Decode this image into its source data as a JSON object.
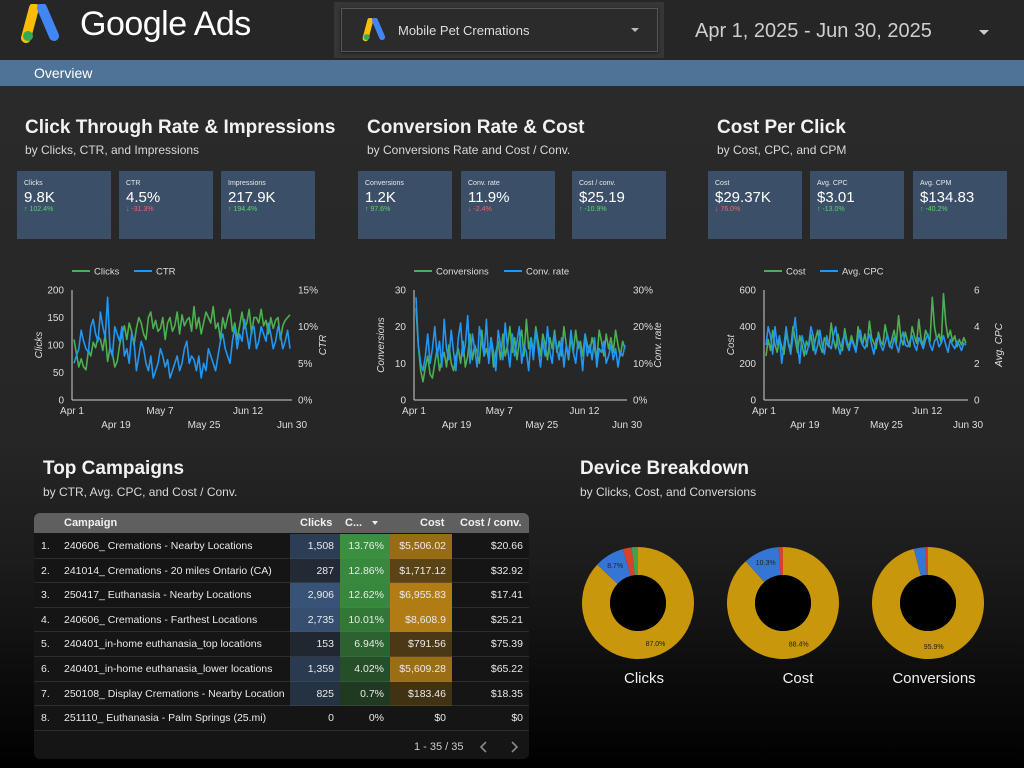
{
  "brand": {
    "name": "Google Ads"
  },
  "account": {
    "name": "Mobile Pet Cremations"
  },
  "date_range": "Apr 1, 2025 - Jun 30, 2025",
  "tabs": [
    {
      "label": "Overview"
    }
  ],
  "colors": {
    "clicks": "#4caf50",
    "rate": "#2196f3",
    "cost": "#c8970c",
    "accent": "#4e7397"
  },
  "sections": {
    "ctr": {
      "title": "Click Through Rate & Impressions",
      "subtitle": "by Clicks, CTR, and Impressions",
      "cards": [
        {
          "label": "Clicks",
          "value": "9.8K",
          "change": "102.4%",
          "dir": "up"
        },
        {
          "label": "CTR",
          "value": "4.5%",
          "change": "-31.3%",
          "dir": "down"
        },
        {
          "label": "Impressions",
          "value": "217.9K",
          "change": "194.4%",
          "dir": "up"
        }
      ]
    },
    "conv": {
      "title": "Conversion Rate & Cost",
      "subtitle": "by Conversions Rate and Cost / Conv.",
      "cards": [
        {
          "label": "Conversions",
          "value": "1.2K",
          "change": "97.6%",
          "dir": "up"
        },
        {
          "label": "Conv. rate",
          "value": "11.9%",
          "change": "-2.4%",
          "dir": "down"
        },
        {
          "label": "Cost / conv.",
          "value": "$25.19",
          "change": "-10.9%",
          "dir": "up"
        }
      ]
    },
    "cpc": {
      "title": "Cost Per Click",
      "subtitle": "by Cost, CPC, and CPM",
      "cards": [
        {
          "label": "Cost",
          "value": "$29.37K",
          "change": "76.0%",
          "dir": "down"
        },
        {
          "label": "Avg. CPC",
          "value": "$3.01",
          "change": "-13.0%",
          "dir": "up"
        },
        {
          "label": "Avg. CPM",
          "value": "$134.83",
          "change": "-40.2%",
          "dir": "up"
        }
      ]
    },
    "campaigns": {
      "title": "Top Campaigns",
      "subtitle": "by CTR, Avg. CPC, and Cost / Conv."
    },
    "devices": {
      "title": "Device Breakdown",
      "subtitle": "by Clicks, Cost, and Conversions"
    }
  },
  "chart_data": [
    {
      "type": "line",
      "legend": [
        "Clicks",
        "CTR"
      ],
      "x_ticks_top": [
        "Apr 1",
        "May 7",
        "Jun 12"
      ],
      "x_ticks_bottom": [
        "Apr 19",
        "May 25",
        "Jun 30"
      ],
      "y_left": {
        "label": "Clicks",
        "ticks": [
          "200",
          "150",
          "100",
          "50",
          "0"
        ],
        "range": [
          0,
          200
        ]
      },
      "y_right": {
        "label": "CTR",
        "ticks": [
          "15%",
          "10%",
          "5%",
          "0%"
        ],
        "range": [
          0,
          15
        ]
      },
      "series": [
        {
          "name": "Clicks",
          "axis": "left",
          "values": [
            110,
            85,
            60,
            75,
            60,
            55,
            90,
            80,
            105,
            95,
            115,
            110,
            90,
            120,
            70,
            95,
            85,
            60,
            70,
            100,
            120,
            135,
            110,
            140,
            125,
            100,
            130,
            150,
            140,
            120,
            110,
            150,
            160,
            130,
            145,
            125,
            130,
            150,
            110,
            140,
            150,
            125,
            135,
            160,
            120,
            155,
            135,
            145,
            150,
            125,
            170,
            130,
            150,
            120,
            140,
            160,
            150,
            140,
            170,
            130,
            140,
            110,
            150,
            130,
            150,
            165,
            125,
            140,
            110,
            135,
            160,
            130,
            140,
            165,
            120,
            150,
            150,
            140,
            165,
            135,
            145,
            120,
            150,
            130,
            145,
            150,
            110,
            135,
            145,
            150,
            155
          ]
        },
        {
          "name": "CTR",
          "axis": "right",
          "values": [
            5,
            6,
            7,
            9.5,
            8,
            7,
            6.5,
            10,
            11,
            9,
            8,
            12,
            10,
            8.5,
            14,
            7,
            6,
            10,
            9,
            8,
            10,
            6,
            7,
            5,
            9,
            8,
            4,
            6,
            8,
            7,
            5,
            4,
            6,
            3,
            4,
            5,
            7,
            6,
            4.5,
            5.5,
            3,
            4,
            5,
            6,
            4,
            5,
            7,
            8,
            5,
            6,
            5.5,
            4,
            6,
            3,
            5,
            4,
            7,
            6,
            5,
            4,
            6,
            8,
            9,
            7,
            6,
            5,
            8,
            10,
            7,
            9,
            8,
            11,
            9,
            7,
            9.5,
            10,
            7,
            8,
            10,
            9,
            8,
            10.5,
            9,
            7,
            8,
            10,
            9,
            7,
            8,
            9.5,
            7
          ]
        }
      ]
    },
    {
      "type": "line",
      "legend": [
        "Conversions",
        "Conv. rate"
      ],
      "x_ticks_top": [
        "Apr 1",
        "May 7",
        "Jun 12"
      ],
      "x_ticks_bottom": [
        "Apr 19",
        "May 25",
        "Jun 30"
      ],
      "y_left": {
        "label": "Conversions",
        "ticks": [
          "30",
          "20",
          "10",
          "0"
        ],
        "range": [
          0,
          30
        ]
      },
      "y_right": {
        "label": "Conv. rate",
        "ticks": [
          "30%",
          "20%",
          "10%",
          "0%"
        ],
        "range": [
          0,
          30
        ]
      },
      "series": [
        {
          "name": "Conversions",
          "axis": "left",
          "values": [
            25,
            15,
            8,
            5,
            9,
            12,
            7,
            6,
            10,
            14,
            8,
            11,
            13,
            9,
            15,
            10,
            8,
            12,
            14,
            10,
            16,
            9,
            12,
            18,
            11,
            15,
            13,
            10,
            19,
            12,
            14,
            11,
            17,
            9,
            13,
            16,
            11,
            18,
            12,
            15,
            20,
            13,
            17,
            11,
            16,
            19,
            12,
            22,
            14,
            17,
            13,
            20,
            16,
            12,
            18,
            15,
            11,
            17,
            14,
            19,
            13,
            16,
            12,
            20,
            15,
            11,
            17,
            13,
            19,
            14,
            16,
            12,
            18,
            15,
            13,
            17,
            14,
            11,
            19,
            16,
            12,
            18,
            14,
            17,
            13,
            19,
            15,
            12,
            16,
            14
          ]
        },
        {
          "name": "Conv. rate",
          "axis": "right",
          "values": [
            28,
            15,
            10,
            8,
            12,
            18,
            10,
            14,
            20,
            12,
            16,
            9,
            22,
            14,
            11,
            19,
            13,
            8,
            17,
            21,
            12,
            15,
            23,
            10,
            18,
            14,
            9,
            20,
            16,
            12,
            22,
            10,
            17,
            13,
            8,
            19,
            15,
            11,
            21,
            14,
            9,
            18,
            12,
            16,
            20,
            10,
            15,
            13,
            8,
            17,
            11,
            19,
            14,
            9,
            16,
            12,
            20,
            13,
            10,
            18,
            14,
            11,
            17,
            9,
            15,
            12,
            19,
            13,
            10,
            16,
            14,
            8,
            18,
            12,
            15,
            11,
            17,
            9,
            14,
            13,
            16,
            10,
            12,
            15,
            11,
            14,
            9,
            13,
            12,
            15
          ]
        }
      ]
    },
    {
      "type": "line",
      "legend": [
        "Cost",
        "Avg. CPC"
      ],
      "x_ticks_top": [
        "Apr 1",
        "May 7",
        "Jun 12"
      ],
      "x_ticks_bottom": [
        "Apr 19",
        "May 25",
        "Jun 30"
      ],
      "y_left": {
        "label": "Cost",
        "ticks": [
          "600",
          "400",
          "200",
          "0"
        ],
        "range": [
          0,
          600
        ]
      },
      "y_right": {
        "label": "Avg. CPC",
        "ticks": [
          "6",
          "4",
          "2",
          "0"
        ],
        "range": [
          0,
          6
        ]
      },
      "series": [
        {
          "name": "Cost",
          "axis": "left",
          "values": [
            240,
            330,
            270,
            380,
            300,
            260,
            340,
            290,
            250,
            360,
            310,
            280,
            400,
            330,
            260,
            350,
            300,
            240,
            320,
            290,
            360,
            270,
            330,
            380,
            300,
            260,
            340,
            310,
            290,
            420,
            330,
            280,
            360,
            300,
            270,
            390,
            320,
            290,
            350,
            310,
            270,
            400,
            330,
            300,
            360,
            290,
            430,
            340,
            310,
            280,
            370,
            320,
            300,
            410,
            350,
            290,
            330,
            380,
            310,
            460,
            340,
            300,
            370,
            320,
            290,
            400,
            350,
            310,
            440,
            330,
            300,
            380,
            350,
            320,
            560,
            400,
            330,
            360,
            310,
            580,
            420,
            340,
            380,
            320,
            350,
            290,
            330,
            300,
            340,
            310
          ]
        },
        {
          "name": "Avg. CPC",
          "axis": "right",
          "values": [
            3,
            4,
            3.5,
            2.5,
            4,
            3,
            3.5,
            2,
            3,
            4,
            3,
            2.5,
            3.5,
            4.5,
            3,
            2,
            3.5,
            3,
            2.5,
            3,
            4,
            3.5,
            2.5,
            3,
            3.8,
            3,
            2.5,
            3.5,
            3,
            2.8,
            3.5,
            4,
            3,
            2.5,
            3.2,
            3.6,
            3,
            2.7,
            3.3,
            3,
            2.6,
            3.4,
            3.8,
            3,
            2.8,
            3.2,
            3.6,
            3,
            2.5,
            3.3,
            3.5,
            3,
            2.7,
            3.1,
            3.6,
            3,
            2.8,
            3.4,
            3,
            2.6,
            3.3,
            3.7,
            3,
            2.9,
            3.2,
            3.5,
            3,
            2.7,
            3.4,
            3.1,
            2.8,
            3.3,
            3.6,
            3,
            2.7,
            3.2,
            3.4,
            2.9,
            3.1,
            3.5,
            3,
            2.6,
            3.3,
            3,
            2.8,
            3.2,
            3,
            2.7,
            3.1,
            3
          ]
        }
      ]
    },
    {
      "type": "pie",
      "title": "Clicks",
      "slices": [
        {
          "value": 87.0,
          "color": "#c8970c",
          "label": "87.0%"
        },
        {
          "value": 8.7,
          "color": "#3575d3",
          "label": "8.7%"
        },
        {
          "value": 2.5,
          "color": "#d84030"
        },
        {
          "value": 1.8,
          "color": "#3fa34d"
        }
      ]
    },
    {
      "type": "pie",
      "title": "Cost",
      "slices": [
        {
          "value": 88.4,
          "color": "#c8970c",
          "label": "88.4%"
        },
        {
          "value": 10.3,
          "color": "#3575d3",
          "label": "10.3%"
        },
        {
          "value": 1.3,
          "color": "#d84030"
        }
      ]
    },
    {
      "type": "pie",
      "title": "Conversions",
      "slices": [
        {
          "value": 95.9,
          "color": "#c8970c",
          "label": "95.9%"
        },
        {
          "value": 3.3,
          "color": "#3575d3"
        },
        {
          "value": 0.8,
          "color": "#d84030"
        }
      ]
    }
  ],
  "table": {
    "columns": [
      "Campaign",
      "Clicks",
      "C...",
      "Cost",
      "Cost / conv."
    ],
    "rows": [
      {
        "idx": "1.",
        "campaign": "240606_ Cremations - Nearby Locations",
        "clicks": "1,508",
        "ctr": "13.76%",
        "cost": "$5,506.02",
        "cpc": "$20.66",
        "ch": 0.55,
        "tr": 1.0,
        "co": 0.79
      },
      {
        "idx": "2.",
        "campaign": "241014_ Cremations - 20 miles Ontario (CA)",
        "clicks": "287",
        "ctr": "12.86%",
        "cost": "$1,717.12",
        "cpc": "$32.92",
        "ch": 0.1,
        "tr": 0.93,
        "co": 0.25
      },
      {
        "idx": "3.",
        "campaign": "250417_ Euthanasia - Nearby Locations",
        "clicks": "2,906",
        "ctr": "12.62%",
        "cost": "$6,955.83",
        "cpc": "$17.41",
        "ch": 1.0,
        "tr": 0.92,
        "co": 1.0
      },
      {
        "idx": "4.",
        "campaign": "240606_ Cremations - Farthest Locations",
        "clicks": "2,735",
        "ctr": "10.01%",
        "cost": "$8,608.9",
        "cpc": "$25.21",
        "ch": 0.94,
        "tr": 0.73,
        "co": 1.0
      },
      {
        "idx": "5.",
        "campaign": "240401_in-home euthanasia_top locations",
        "clicks": "153",
        "ctr": "6.94%",
        "cost": "$791.56",
        "cpc": "$75.39",
        "ch": 0.05,
        "tr": 0.5,
        "co": 0.11
      },
      {
        "idx": "6.",
        "campaign": "240401_in-home euthanasia_lower locations",
        "clicks": "1,359",
        "ctr": "4.02%",
        "cost": "$5,609.28",
        "cpc": "$65.22",
        "ch": 0.47,
        "tr": 0.29,
        "co": 0.8
      },
      {
        "idx": "7.",
        "campaign": "250108_ Display Cremations - Nearby Location",
        "clicks": "825",
        "ctr": "0.7%",
        "cost": "$183.46",
        "cpc": "$18.35",
        "ch": 0.28,
        "tr": 0.05,
        "co": 0.03
      },
      {
        "idx": "8.",
        "campaign": "251110_ Euthanasia - Palm Springs (25.mi)",
        "clicks": "0",
        "ctr": "0%",
        "cost": "$0",
        "cpc": "$0",
        "ch": 0,
        "tr": 0,
        "co": 0
      }
    ],
    "pagination": "1 - 35 / 35"
  },
  "donut_labels": [
    "Clicks",
    "Cost",
    "Conversions"
  ]
}
